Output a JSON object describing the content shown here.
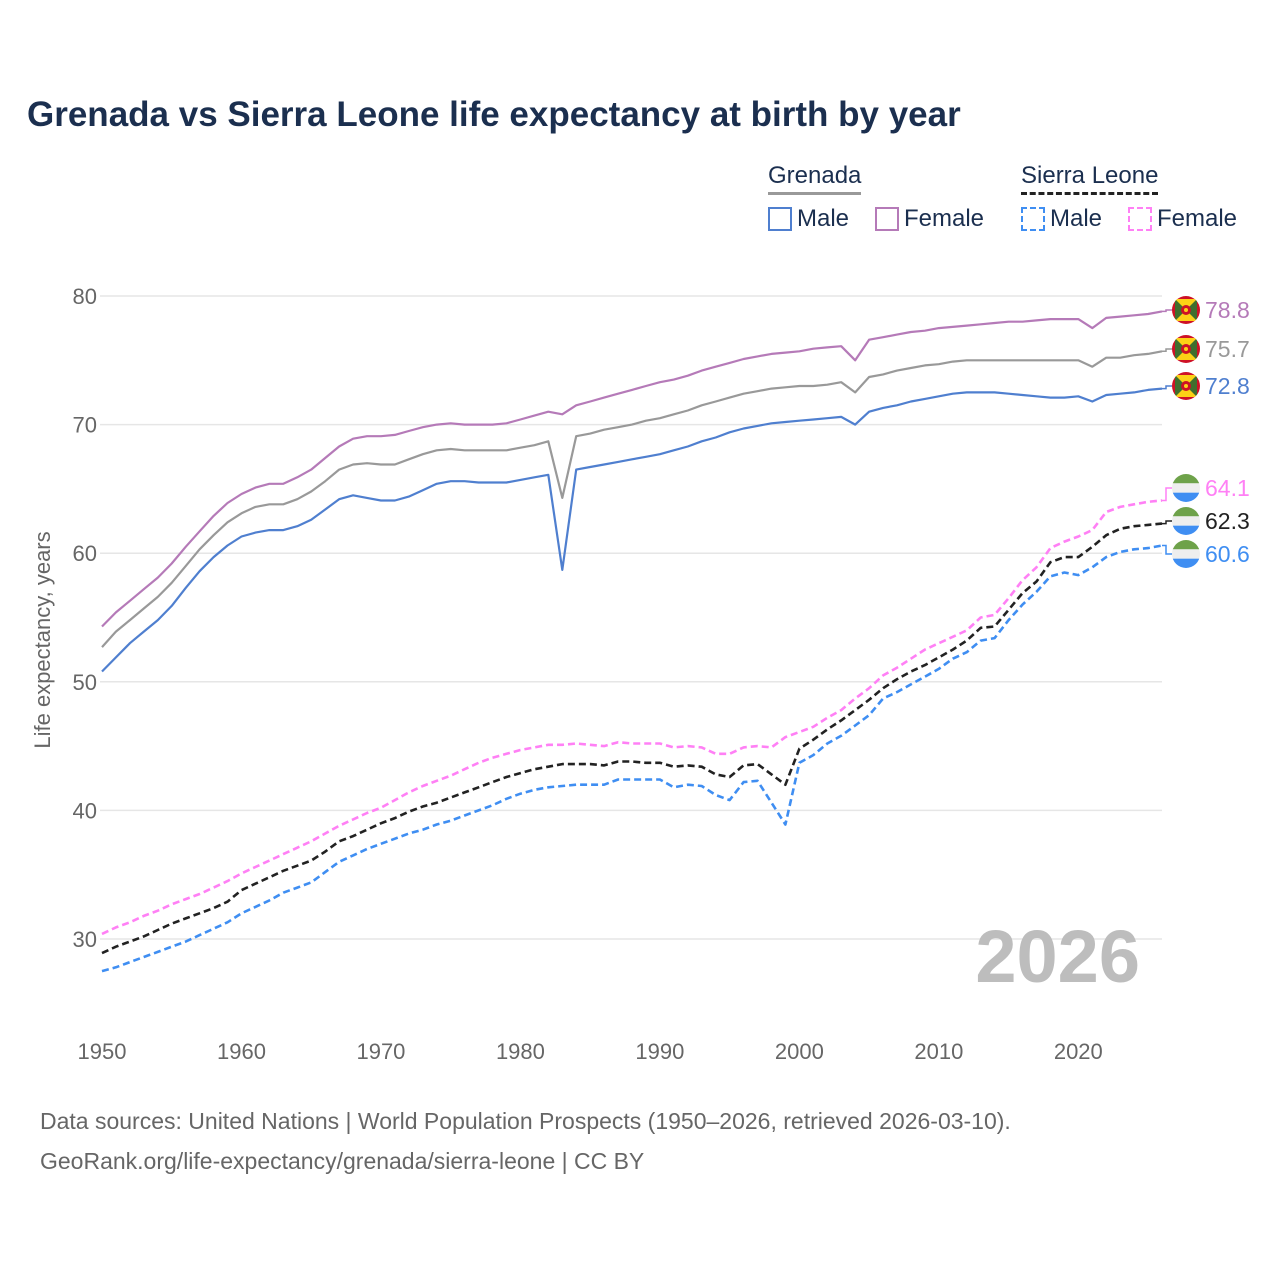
{
  "title": "Grenada vs Sierra Leone life expectancy at birth by year",
  "legend": {
    "groups": [
      {
        "name": "Grenada",
        "items": [
          "Male",
          "Female"
        ]
      },
      {
        "name": "Sierra Leone",
        "items": [
          "Male",
          "Female"
        ]
      }
    ]
  },
  "watermark_year": "2026",
  "footer": {
    "line1": "Data sources: United Nations | World Population Prospects (1950–2026, retrieved 2026-03-10).",
    "line2": "GeoRank.org/life-expectancy/grenada/sierra-leone | CC BY"
  },
  "colors": {
    "grenada_male": "#4f7fcf",
    "grenada_female": "#b57ab8",
    "grenada_total": "#999999",
    "sl_male": "#3f8ef2",
    "sl_female": "#ff80f5",
    "sl_total": "#222222"
  },
  "chart_data": {
    "type": "line",
    "title": "Grenada vs Sierra Leone life expectancy at birth by year",
    "xlabel": "",
    "ylabel": "Life expectancy, years",
    "xlim": [
      1950,
      2026
    ],
    "ylim": [
      25,
      80
    ],
    "x_ticks": [
      1950,
      1960,
      1970,
      1980,
      1990,
      2000,
      2010,
      2020
    ],
    "y_ticks": [
      30,
      40,
      50,
      60,
      70,
      80
    ],
    "grid": true,
    "legend_position": "top-right",
    "x_start": 1950,
    "series": [
      {
        "name": "Grenada Female",
        "key": "grenada_female",
        "dashed": false,
        "end_label": "78.8",
        "flag": "grenada",
        "values": [
          54.3,
          55.4,
          56.3,
          57.2,
          58.1,
          59.2,
          60.5,
          61.7,
          62.9,
          63.9,
          64.6,
          65.1,
          65.4,
          65.4,
          65.9,
          66.5,
          67.4,
          68.3,
          68.9,
          69.1,
          69.1,
          69.2,
          69.5,
          69.8,
          70.0,
          70.1,
          70.0,
          70.0,
          70.0,
          70.1,
          70.4,
          70.7,
          71.0,
          70.8,
          71.5,
          71.8,
          72.1,
          72.4,
          72.7,
          73.0,
          73.3,
          73.5,
          73.8,
          74.2,
          74.5,
          74.8,
          75.1,
          75.3,
          75.5,
          75.6,
          75.7,
          75.9,
          76.0,
          76.1,
          75.0,
          76.6,
          76.8,
          77.0,
          77.2,
          77.3,
          77.5,
          77.6,
          77.7,
          77.8,
          77.9,
          78.0,
          78.0,
          78.1,
          78.2,
          78.2,
          78.2,
          77.5,
          78.3,
          78.4,
          78.5,
          78.6,
          78.8
        ]
      },
      {
        "name": "Grenada Total",
        "key": "grenada_total",
        "dashed": false,
        "end_label": "75.7",
        "flag": "grenada",
        "values": [
          52.7,
          53.9,
          54.8,
          55.7,
          56.6,
          57.7,
          59.0,
          60.3,
          61.4,
          62.4,
          63.1,
          63.6,
          63.8,
          63.8,
          64.2,
          64.8,
          65.6,
          66.5,
          66.9,
          67.0,
          66.9,
          66.9,
          67.3,
          67.7,
          68.0,
          68.1,
          68.0,
          68.0,
          68.0,
          68.0,
          68.2,
          68.4,
          68.7,
          64.3,
          69.1,
          69.3,
          69.6,
          69.8,
          70.0,
          70.3,
          70.5,
          70.8,
          71.1,
          71.5,
          71.8,
          72.1,
          72.4,
          72.6,
          72.8,
          72.9,
          73.0,
          73.0,
          73.1,
          73.3,
          72.5,
          73.7,
          73.9,
          74.2,
          74.4,
          74.6,
          74.7,
          74.9,
          75.0,
          75.0,
          75.0,
          75.0,
          75.0,
          75.0,
          75.0,
          75.0,
          75.0,
          74.5,
          75.2,
          75.2,
          75.4,
          75.5,
          75.7
        ]
      },
      {
        "name": "Grenada Male",
        "key": "grenada_male",
        "dashed": false,
        "end_label": "72.8",
        "flag": "grenada",
        "values": [
          50.8,
          51.9,
          53.0,
          53.9,
          54.8,
          55.9,
          57.3,
          58.6,
          59.7,
          60.6,
          61.3,
          61.6,
          61.8,
          61.8,
          62.1,
          62.6,
          63.4,
          64.2,
          64.5,
          64.3,
          64.1,
          64.1,
          64.4,
          64.9,
          65.4,
          65.6,
          65.6,
          65.5,
          65.5,
          65.5,
          65.7,
          65.9,
          66.1,
          58.7,
          66.5,
          66.7,
          66.9,
          67.1,
          67.3,
          67.5,
          67.7,
          68.0,
          68.3,
          68.7,
          69.0,
          69.4,
          69.7,
          69.9,
          70.1,
          70.2,
          70.3,
          70.4,
          70.5,
          70.6,
          70.0,
          71.0,
          71.3,
          71.5,
          71.8,
          72.0,
          72.2,
          72.4,
          72.5,
          72.5,
          72.5,
          72.4,
          72.3,
          72.2,
          72.1,
          72.1,
          72.2,
          71.8,
          72.3,
          72.4,
          72.5,
          72.7,
          72.8
        ]
      },
      {
        "name": "Sierra Leone Female",
        "key": "sl_female",
        "dashed": true,
        "end_label": "64.1",
        "flag": "sierra-leone",
        "values": [
          30.4,
          30.9,
          31.3,
          31.8,
          32.2,
          32.7,
          33.1,
          33.5,
          34.0,
          34.5,
          35.1,
          35.6,
          36.1,
          36.6,
          37.1,
          37.6,
          38.2,
          38.8,
          39.3,
          39.8,
          40.2,
          40.8,
          41.4,
          41.9,
          42.3,
          42.7,
          43.2,
          43.7,
          44.1,
          44.4,
          44.7,
          44.9,
          45.1,
          45.1,
          45.2,
          45.1,
          45.0,
          45.3,
          45.2,
          45.2,
          45.2,
          44.9,
          45.0,
          44.9,
          44.4,
          44.4,
          44.9,
          45.0,
          44.9,
          45.7,
          46.1,
          46.5,
          47.2,
          47.8,
          48.7,
          49.5,
          50.5,
          51.1,
          51.8,
          52.5,
          53.0,
          53.5,
          54.0,
          55.0,
          55.2,
          56.5,
          57.9,
          58.9,
          60.4,
          60.9,
          61.3,
          61.8,
          63.2,
          63.6,
          63.8,
          64.0,
          64.1
        ]
      },
      {
        "name": "Sierra Leone Total",
        "key": "sl_total",
        "dashed": true,
        "end_label": "62.3",
        "flag": "sierra-leone",
        "values": [
          28.9,
          29.4,
          29.8,
          30.2,
          30.7,
          31.2,
          31.6,
          32.0,
          32.4,
          32.9,
          33.8,
          34.3,
          34.8,
          35.3,
          35.7,
          36.1,
          36.8,
          37.6,
          38.0,
          38.5,
          39.0,
          39.4,
          39.9,
          40.3,
          40.6,
          41.0,
          41.4,
          41.8,
          42.2,
          42.6,
          42.9,
          43.2,
          43.4,
          43.6,
          43.6,
          43.6,
          43.5,
          43.8,
          43.8,
          43.7,
          43.7,
          43.4,
          43.5,
          43.4,
          42.8,
          42.6,
          43.5,
          43.6,
          42.8,
          42.0,
          44.8,
          45.5,
          46.3,
          47.0,
          47.8,
          48.6,
          49.5,
          50.2,
          50.8,
          51.3,
          51.9,
          52.5,
          53.2,
          54.2,
          54.3,
          55.6,
          56.9,
          57.8,
          59.3,
          59.7,
          59.7,
          60.5,
          61.4,
          61.9,
          62.1,
          62.2,
          62.3
        ]
      },
      {
        "name": "Sierra Leone Male",
        "key": "sl_male",
        "dashed": true,
        "end_label": "60.6",
        "flag": "sierra-leone",
        "values": [
          27.5,
          27.8,
          28.2,
          28.6,
          29.0,
          29.4,
          29.8,
          30.3,
          30.8,
          31.3,
          32.0,
          32.5,
          33.0,
          33.6,
          34.0,
          34.4,
          35.2,
          36.0,
          36.5,
          37.0,
          37.4,
          37.8,
          38.2,
          38.5,
          38.9,
          39.2,
          39.6,
          40.0,
          40.4,
          40.9,
          41.3,
          41.6,
          41.8,
          41.9,
          42.0,
          42.0,
          42.0,
          42.4,
          42.4,
          42.4,
          42.4,
          41.8,
          42.0,
          41.9,
          41.2,
          40.8,
          42.2,
          42.3,
          40.6,
          38.9,
          43.7,
          44.3,
          45.2,
          45.8,
          46.6,
          47.4,
          48.7,
          49.2,
          49.8,
          50.4,
          51.0,
          51.8,
          52.3,
          53.2,
          53.4,
          54.8,
          56.0,
          57.0,
          58.2,
          58.5,
          58.3,
          58.9,
          59.7,
          60.1,
          60.3,
          60.4,
          60.6
        ]
      }
    ]
  }
}
